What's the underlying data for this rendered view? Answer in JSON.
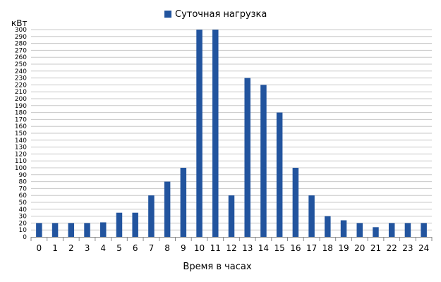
{
  "chart_data": {
    "type": "bar",
    "legend": {
      "position": "top",
      "label": "Суточная нагрузка",
      "color": "#22549e"
    },
    "unit_label": "кВт",
    "xlabel": "Время в часах",
    "ylabel": "",
    "ylim": [
      0,
      300
    ],
    "y_tick_step": 10,
    "grid": true,
    "categories": [
      "0",
      "1",
      "2",
      "3",
      "4",
      "5",
      "6",
      "7",
      "8",
      "9",
      "10",
      "11",
      "12",
      "13",
      "14",
      "15",
      "16",
      "17",
      "18",
      "19",
      "20",
      "21",
      "22",
      "23",
      "24"
    ],
    "series": [
      {
        "name": "Суточная нагрузка",
        "color": "#22549e",
        "values": [
          20,
          20,
          20,
          20,
          21,
          35,
          35,
          60,
          80,
          100,
          300,
          300,
          60,
          230,
          220,
          180,
          100,
          60,
          30,
          24,
          20,
          14,
          20,
          20,
          20
        ]
      }
    ]
  }
}
